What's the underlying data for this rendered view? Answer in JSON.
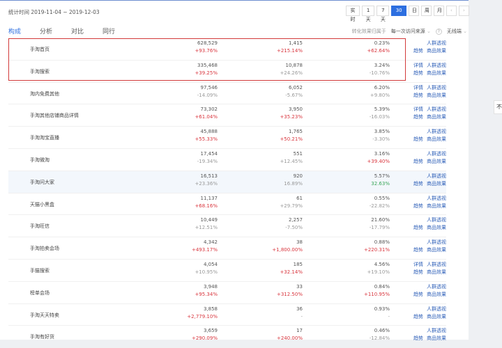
{
  "header": {
    "date_range": "统计时间 2019-11-04 ~ 2019-12-03",
    "time_buttons": [
      "实时",
      "1天",
      "7天",
      "30天",
      "日",
      "周",
      "月"
    ],
    "active_time": "30天",
    "prev": "‹",
    "next": "›"
  },
  "tabs": [
    {
      "label": "构成",
      "active": true
    },
    {
      "label": "分析"
    },
    {
      "label": "对比"
    },
    {
      "label": "同行"
    }
  ],
  "filters": {
    "label": "转化效果归属于",
    "attribution": "每一次访问来源",
    "help": "?",
    "device": "无线端"
  },
  "colors": {
    "accent": "#2d6fe0",
    "up": "#d9363e",
    "down": "#999999",
    "green": "#3aa658",
    "highlight_box": "#d23a3a"
  },
  "rows": [
    {
      "name": "手淘首页",
      "v1": "628,529",
      "c1": "+93.76%",
      "c1t": "red",
      "v2": "1,415",
      "c2": "+215.14%",
      "c2t": "red",
      "v3": "0.23%",
      "c3": "+62.64%",
      "c3t": "red",
      "detail": false
    },
    {
      "name": "手淘搜索",
      "v1": "335,468",
      "c1": "+39.25%",
      "c1t": "red",
      "v2": "10,878",
      "c2": "+24.26%",
      "c2t": "",
      "v3": "3.24%",
      "c3": "-10.76%",
      "c3t": "",
      "detail": true
    },
    {
      "name": "淘内免费其他",
      "v1": "97,546",
      "c1": "-14.09%",
      "c1t": "",
      "v2": "6,052",
      "c2": "-5.67%",
      "c2t": "",
      "v3": "6.20%",
      "c3": "+9.80%",
      "c3t": "",
      "detail": true
    },
    {
      "name": "手淘其他店铺商品详情",
      "v1": "73,302",
      "c1": "+61.04%",
      "c1t": "red",
      "v2": "3,950",
      "c2": "+35.23%",
      "c2t": "red",
      "v3": "5.39%",
      "c3": "-16.03%",
      "c3t": "",
      "detail": true
    },
    {
      "name": "手淘淘宝直播",
      "v1": "45,888",
      "c1": "+55.33%",
      "c1t": "red",
      "v2": "1,765",
      "c2": "+50.21%",
      "c2t": "red",
      "v3": "3.85%",
      "c3": "-3.30%",
      "c3t": "",
      "detail": false
    },
    {
      "name": "手淘微淘",
      "v1": "17,454",
      "c1": "-19.34%",
      "c1t": "",
      "v2": "551",
      "c2": "+12.45%",
      "c2t": "",
      "v3": "3.16%",
      "c3": "+39.40%",
      "c3t": "red",
      "detail": false
    },
    {
      "name": "手淘问大家",
      "v1": "16,513",
      "c1": "+23.36%",
      "c1t": "",
      "v2": "920",
      "c2": "16.89%",
      "c2t": "",
      "v3": "5.57%",
      "c3": "32.63%",
      "c3t": "green",
      "detail": false,
      "highlight": true
    },
    {
      "name": "天猫小黑盒",
      "v1": "11,137",
      "c1": "+68.16%",
      "c1t": "red",
      "v2": "61",
      "c2": "+29.79%",
      "c2t": "",
      "v3": "0.55%",
      "c3": "-22.82%",
      "c3t": "",
      "detail": false
    },
    {
      "name": "手淘旺信",
      "v1": "10,449",
      "c1": "+12.51%",
      "c1t": "",
      "v2": "2,257",
      "c2": "-7.50%",
      "c2t": "",
      "v3": "21.60%",
      "c3": "-17.79%",
      "c3t": "",
      "detail": false
    },
    {
      "name": "手淘拍卖会场",
      "v1": "4,342",
      "c1": "+493.17%",
      "c1t": "red",
      "v2": "38",
      "c2": "+1,800.00%",
      "c2t": "red",
      "v3": "0.88%",
      "c3": "+220.31%",
      "c3t": "red",
      "detail": false
    },
    {
      "name": "手猫搜索",
      "v1": "4,054",
      "c1": "+10.95%",
      "c1t": "",
      "v2": "185",
      "c2": "+32.14%",
      "c2t": "red",
      "v3": "4.56%",
      "c3": "+19.10%",
      "c3t": "",
      "detail": true
    },
    {
      "name": "榜单会场",
      "v1": "3,948",
      "c1": "+95.34%",
      "c1t": "red",
      "v2": "33",
      "c2": "+312.50%",
      "c2t": "red",
      "v3": "0.84%",
      "c3": "+110.95%",
      "c3t": "red",
      "detail": false
    },
    {
      "name": "手淘天天特卖",
      "v1": "3,858",
      "c1": "+2,779.10%",
      "c1t": "red",
      "v2": "36",
      "c2": "-",
      "c2t": "",
      "v3": "0.93%",
      "c3": "-",
      "c3t": "",
      "detail": false
    },
    {
      "name": "手淘有好货",
      "v1": "3,659",
      "c1": "+290.09%",
      "c1t": "red",
      "v2": "17",
      "c2": "+240.00%",
      "c2t": "red",
      "v3": "0.46%",
      "c3": "-12.84%",
      "c3t": "",
      "detail": false
    }
  ],
  "links": {
    "detail": "详情",
    "crowd": "人群透视",
    "trend": "趋势",
    "goods": "商品效果"
  },
  "side_tab": "不"
}
